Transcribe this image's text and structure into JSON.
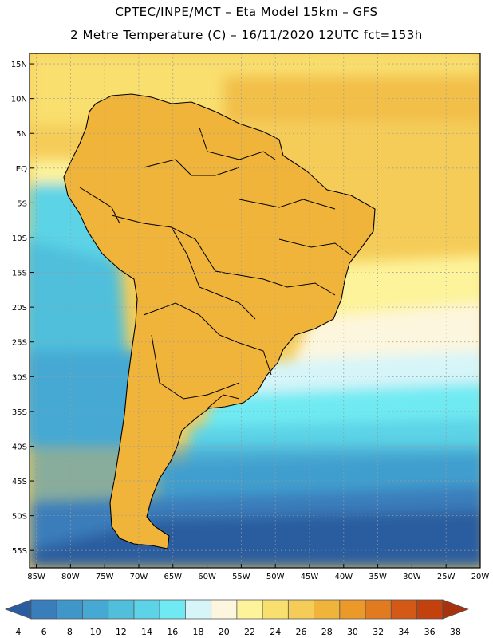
{
  "header": {
    "title_line1": "CPTEC/INPE/MCT –  Eta Model 15km – GFS",
    "title_line2": "2 Metre Temperature (C) – 16/11/2020 12UTC fct=153h"
  },
  "map": {
    "region": "South America",
    "lat_labels": [
      "15N",
      "10N",
      "5N",
      "EQ",
      "5S",
      "10S",
      "15S",
      "20S",
      "25S",
      "30S",
      "35S",
      "40S",
      "45S",
      "50S",
      "55S"
    ],
    "lon_labels": [
      "85W",
      "80W",
      "75W",
      "70W",
      "65W",
      "60W",
      "55W",
      "50W",
      "45W",
      "40W",
      "35W",
      "30W",
      "25W",
      "20W"
    ],
    "lat_values": [
      15,
      10,
      5,
      0,
      -5,
      -10,
      -15,
      -20,
      -25,
      -30,
      -35,
      -40,
      -45,
      -50,
      -55
    ],
    "lon_values": [
      -85,
      -80,
      -75,
      -70,
      -65,
      -60,
      -55,
      -50,
      -45,
      -40,
      -35,
      -30,
      -25,
      -20
    ],
    "lat_range": [
      -57.5,
      16.5
    ],
    "lon_range": [
      -86,
      -20
    ]
  },
  "colorbar": {
    "labels": [
      "4",
      "6",
      "8",
      "10",
      "12",
      "14",
      "16",
      "18",
      "20",
      "22",
      "24",
      "26",
      "28",
      "30",
      "32",
      "34",
      "36",
      "38"
    ],
    "colors": [
      "#2a5d9f",
      "#3a7dbb",
      "#3f97c9",
      "#45a9d4",
      "#4fbfdc",
      "#5cd3e6",
      "#6feaf2",
      "#d6f5f9",
      "#fdf6de",
      "#fdf39a",
      "#f9df6e",
      "#f5cc58",
      "#f0b43a",
      "#eb9a2a",
      "#e27a20",
      "#d45916",
      "#c2410d",
      "#a8320c"
    ]
  }
}
